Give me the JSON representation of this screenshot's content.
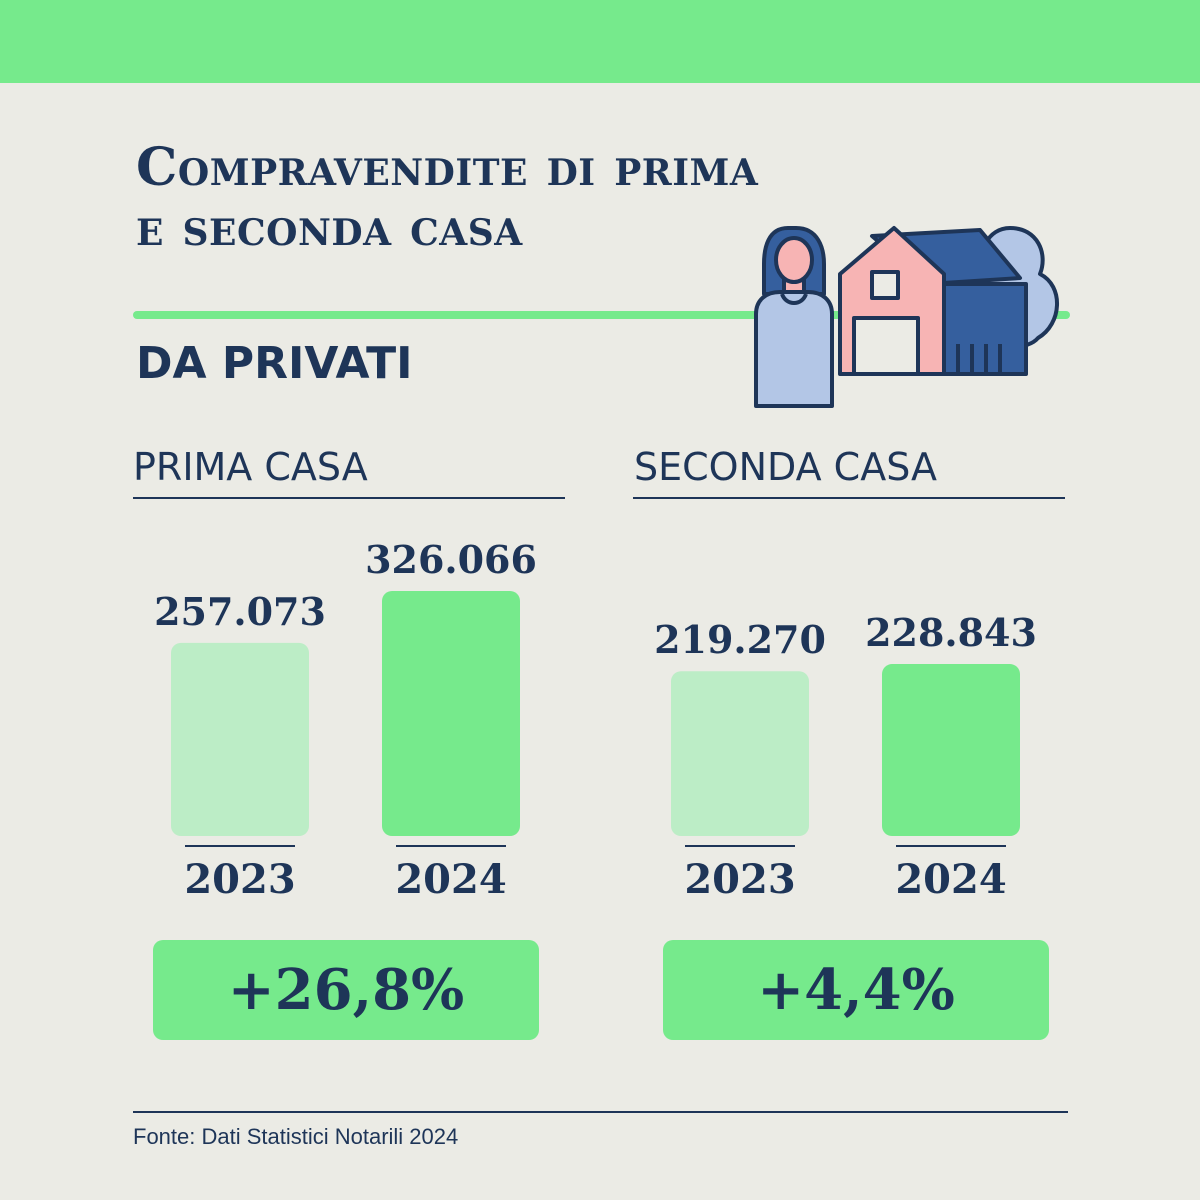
{
  "title": {
    "line1": "Compravendite di prima",
    "line2": "e seconda casa"
  },
  "subtitle": "DA PRIVATI",
  "colors": {
    "background": "#ebebe5",
    "accent_green": "#76ea8c",
    "light_green": "#bcedc6",
    "navy": "#1e3558",
    "house_pink": "#f7b4b4",
    "roof_blue": "#355f9e",
    "tree_blue": "#b3c6e6"
  },
  "illustration": {
    "icons": [
      "person-icon",
      "house-icon",
      "tree-icon"
    ]
  },
  "chart_data": [
    {
      "type": "bar",
      "title": "PRIMA CASA",
      "categories": [
        "2023",
        "2024"
      ],
      "values": [
        257073,
        326066
      ],
      "value_labels": [
        "257.073",
        "326.066"
      ],
      "change_label": "+26,8%",
      "colors": [
        "#bcedc6",
        "#76ea8c"
      ]
    },
    {
      "type": "bar",
      "title": "SECONDA CASA",
      "categories": [
        "2023",
        "2024"
      ],
      "values": [
        219270,
        228843
      ],
      "value_labels": [
        "219.270",
        "228.843"
      ],
      "change_label": "+4,4%",
      "colors": [
        "#bcedc6",
        "#76ea8c"
      ]
    }
  ],
  "source": "Fonte: Dati Statistici Notarili 2024"
}
